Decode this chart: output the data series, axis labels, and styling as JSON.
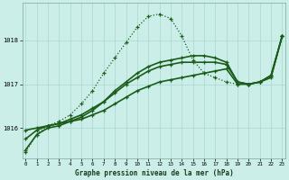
{
  "title": "Graphe pression niveau de la mer (hPa)",
  "background_color": "#cceee8",
  "line_color": "#1a5c1a",
  "x_ticks": [
    0,
    1,
    2,
    3,
    4,
    5,
    6,
    7,
    8,
    9,
    10,
    11,
    12,
    13,
    14,
    15,
    16,
    17,
    18,
    19,
    20,
    21,
    22,
    23
  ],
  "y_ticks": [
    1016,
    1017,
    1018
  ],
  "ylim": [
    1015.3,
    1018.85
  ],
  "xlim": [
    -0.3,
    23.3
  ],
  "series_dotted": [
    1015.45,
    1015.85,
    1016.05,
    1016.15,
    1016.3,
    1016.55,
    1016.85,
    1017.25,
    1017.6,
    1017.95,
    1018.3,
    1018.55,
    1018.6,
    1018.5,
    1018.1,
    1017.55,
    1017.25,
    1017.15,
    1017.05,
    1017.0,
    1017.0,
    1017.05,
    1017.2,
    1018.1
  ],
  "series_solid1": [
    1015.95,
    1016.0,
    1016.05,
    1016.1,
    1016.15,
    1016.2,
    1016.3,
    1016.4,
    1016.55,
    1016.7,
    1016.85,
    1016.95,
    1017.05,
    1017.1,
    1017.15,
    1017.2,
    1017.25,
    1017.3,
    1017.35,
    1017.0,
    1017.0,
    1017.05,
    1017.15,
    1018.1
  ],
  "series_solid2": [
    1015.75,
    1015.95,
    1016.05,
    1016.1,
    1016.2,
    1016.3,
    1016.45,
    1016.6,
    1016.8,
    1017.0,
    1017.15,
    1017.3,
    1017.4,
    1017.45,
    1017.5,
    1017.5,
    1017.5,
    1017.5,
    1017.45,
    1017.05,
    1017.0,
    1017.05,
    1017.2,
    1018.1
  ],
  "series_solid3": [
    1015.5,
    1015.85,
    1016.0,
    1016.05,
    1016.15,
    1016.25,
    1016.4,
    1016.6,
    1016.85,
    1017.05,
    1017.25,
    1017.4,
    1017.5,
    1017.55,
    1017.6,
    1017.65,
    1017.65,
    1017.6,
    1017.5,
    1017.05,
    1017.0,
    1017.05,
    1017.2,
    1018.1
  ]
}
